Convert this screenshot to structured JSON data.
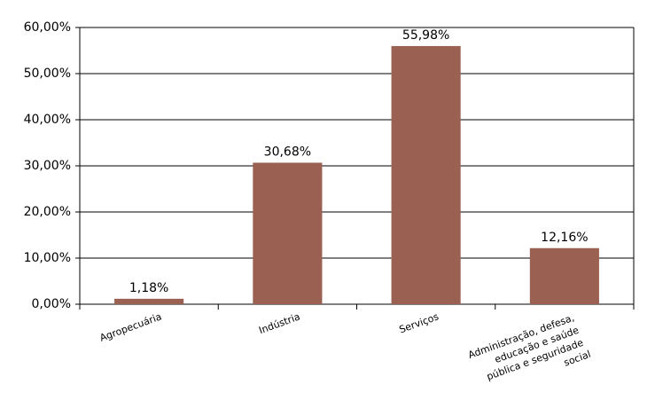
{
  "chart_data": {
    "type": "bar",
    "categories": [
      "Agropecuária",
      "Indústria",
      "Serviços",
      "Administração, defesa, educação e saúde pública e seguridade social"
    ],
    "values": [
      1.18,
      30.68,
      55.98,
      12.16
    ],
    "value_labels": [
      "1,18%",
      "30,68%",
      "55,98%",
      "12,16%"
    ],
    "color": "#9a6051",
    "ylim": [
      0,
      60
    ],
    "yticks": [
      {
        "value": 0,
        "label": "0,00%"
      },
      {
        "value": 10,
        "label": "10,00%"
      },
      {
        "value": 20,
        "label": "20,00%"
      },
      {
        "value": 30,
        "label": "30,00%"
      },
      {
        "value": 40,
        "label": "40,00%"
      },
      {
        "value": 50,
        "label": "50,00%"
      },
      {
        "value": 60,
        "label": "60,00%"
      }
    ],
    "grid": true
  }
}
